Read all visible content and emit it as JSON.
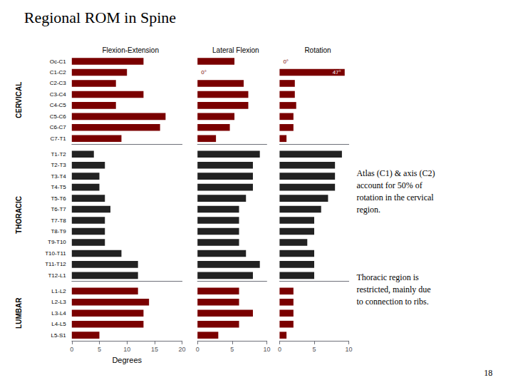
{
  "title": "Regional ROM in Spine",
  "annotations": [
    "Atlas (C1) & axis (C2)\naccount for 50% of\nrotation in the cervical\nregion.",
    "Thoracic region is\nrestricted, mainly due\nto connection to ribs.",
    "18"
  ],
  "chart_data": [
    {
      "type": "bar",
      "orientation": "horizontal",
      "title": "Flexion-Extension",
      "ylabel": "CERVICAL",
      "categories": [
        "Oc-C1",
        "C1-C2",
        "C2-C3",
        "C3-C4",
        "C4-C5",
        "C5-C6",
        "C6-C7",
        "C7-T1"
      ],
      "values": [
        13,
        10,
        8,
        13,
        8,
        17,
        16,
        9
      ],
      "color": "#7a0000",
      "xlim": [
        0,
        20
      ],
      "grid": false,
      "tick_labels": "y"
    },
    {
      "type": "bar",
      "orientation": "horizontal",
      "title": "Lateral Flexion",
      "categories": [
        "Oc-C1",
        "C1-C2",
        "C2-C3",
        "C3-C4",
        "C4-C5",
        "C5-C6",
        "C6-C7",
        "C7-T1"
      ],
      "values": [
        8,
        0,
        10,
        11,
        11,
        8,
        7,
        4
      ],
      "color": "#7a0000",
      "xlim": [
        0,
        15
      ],
      "grid": false,
      "tick_labels": false,
      "annotations": [
        {
          "text": "0°",
          "category": "C1-C2"
        }
      ]
    },
    {
      "type": "bar",
      "orientation": "horizontal",
      "title": "Rotation",
      "categories": [
        "Oc-C1",
        "C1-C2",
        "C2-C3",
        "C3-C4",
        "C4-C5",
        "C5-C6",
        "C6-C7",
        "C7-T1"
      ],
      "values": [
        0,
        47,
        11,
        11,
        12,
        10,
        10,
        5
      ],
      "color": "#7a0000",
      "xlim": [
        0,
        50
      ],
      "grid": false,
      "tick_labels": false,
      "annotations": [
        {
          "text": "0°",
          "category": "Oc-C1"
        },
        {
          "text": "47°",
          "category": "C1-C2"
        }
      ]
    },
    {
      "type": "bar",
      "orientation": "horizontal",
      "ylabel": "THORACIC",
      "categories": [
        "T1-T2",
        "T2-T3",
        "T3-T4",
        "T4-T5",
        "T5-T6",
        "T6-T7",
        "T7-T8",
        "T8-T9",
        "T9-T10",
        "T10-T11",
        "T11-T12",
        "T12-L1"
      ],
      "values": [
        4,
        6,
        5,
        5,
        6,
        7,
        6,
        6,
        6,
        9,
        12,
        12
      ],
      "color": "#222222",
      "xlim": [
        0,
        20
      ],
      "grid": false,
      "tick_labels": "y"
    },
    {
      "type": "bar",
      "orientation": "horizontal",
      "categories": [
        "T1-T2",
        "T2-T3",
        "T3-T4",
        "T4-T5",
        "T5-T6",
        "T6-T7",
        "T7-T8",
        "T8-T9",
        "T9-T10",
        "T10-T11",
        "T11-T12",
        "T12-L1"
      ],
      "values": [
        9,
        8,
        8,
        8,
        7,
        6,
        6,
        6,
        6,
        7,
        9,
        8
      ],
      "color": "#222222",
      "xlim": [
        0,
        10
      ],
      "grid": false,
      "tick_labels": false
    },
    {
      "type": "bar",
      "orientation": "horizontal",
      "categories": [
        "T1-T2",
        "T2-T3",
        "T3-T4",
        "T4-T5",
        "T5-T6",
        "T6-T7",
        "T7-T8",
        "T8-T9",
        "T9-T10",
        "T10-T11",
        "T11-T12",
        "T12-L1"
      ],
      "values": [
        9,
        8,
        8,
        8,
        7,
        6,
        5,
        5,
        4,
        5,
        5,
        5
      ],
      "color": "#222222",
      "xlim": [
        0,
        10
      ],
      "grid": false,
      "tick_labels": false
    },
    {
      "type": "bar",
      "orientation": "horizontal",
      "ylabel": "LUMBAR",
      "xlabel": "Degrees",
      "categories": [
        "L1-L2",
        "L2-L3",
        "L3-L4",
        "L4-L5",
        "L5-S1"
      ],
      "values": [
        12,
        14,
        13,
        13,
        5
      ],
      "color": "#7a0000",
      "xlim": [
        0,
        20
      ],
      "xticks": [
        0,
        5,
        10,
        15,
        20
      ],
      "grid": false,
      "tick_labels": true
    },
    {
      "type": "bar",
      "orientation": "horizontal",
      "categories": [
        "L1-L2",
        "L2-L3",
        "L3-L4",
        "L4-L5",
        "L5-S1"
      ],
      "values": [
        6,
        6,
        8,
        6,
        3
      ],
      "color": "#7a0000",
      "xlim": [
        0,
        10
      ],
      "xticks": [
        0,
        5,
        10
      ],
      "grid": false,
      "tick_labels": "x"
    },
    {
      "type": "bar",
      "orientation": "horizontal",
      "categories": [
        "L1-L2",
        "L2-L3",
        "L3-L4",
        "L4-L5",
        "L5-S1"
      ],
      "values": [
        2,
        2,
        2,
        2,
        1
      ],
      "color": "#7a0000",
      "xlim": [
        0,
        10
      ],
      "xticks": [
        0,
        5,
        10
      ],
      "grid": false,
      "tick_labels": "x"
    }
  ]
}
